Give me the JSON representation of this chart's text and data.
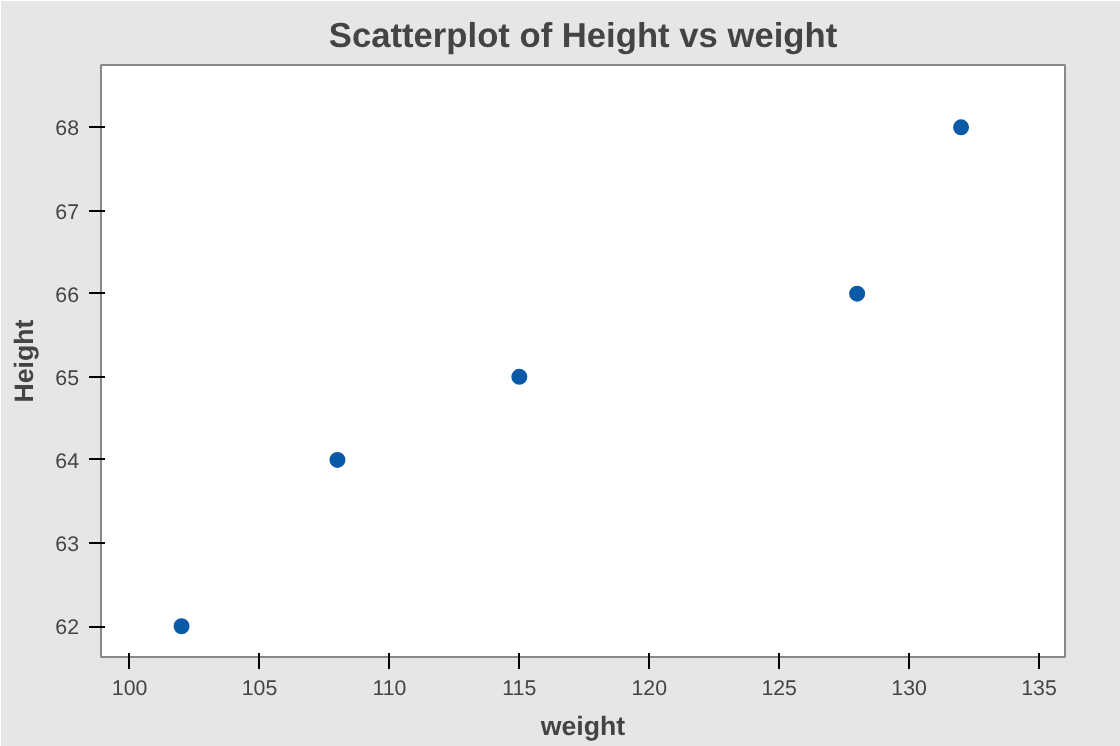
{
  "chart_data": {
    "type": "scatter",
    "title": "Scatterplot of Height vs weight",
    "xlabel": "weight",
    "ylabel": "Height",
    "x": [
      102,
      108,
      115,
      128,
      132
    ],
    "series": [
      {
        "color": "#0b5aa8",
        "values": [
          62,
          64,
          65,
          66,
          68
        ]
      }
    ],
    "xlim": [
      98.9,
      136
    ],
    "xticks": [
      100,
      105,
      110,
      115,
      120,
      125,
      130,
      135
    ],
    "ylim": [
      61.63,
      68.75
    ],
    "yticks": [
      62,
      63,
      64,
      65,
      66,
      67,
      68
    ],
    "marker": "circle",
    "grid": false
  }
}
